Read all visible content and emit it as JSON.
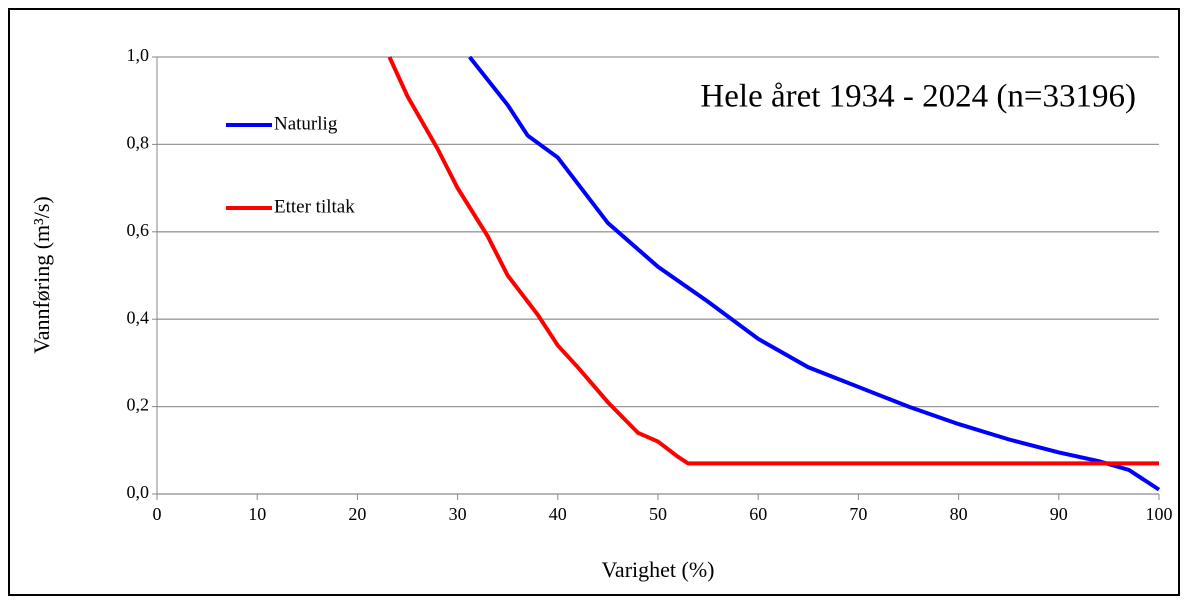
{
  "chart_data": {
    "type": "line",
    "annotation": "Hele året 1934 - 2024 (n=33196)",
    "x_label": "Varighet (%)",
    "y_label": "Vannføring (m³/s)",
    "xlim": [
      0,
      100
    ],
    "xticks": [
      0,
      10,
      20,
      30,
      40,
      50,
      60,
      70,
      80,
      90,
      100
    ],
    "ylim": [
      0,
      1
    ],
    "yticks": [
      {
        "value": 0,
        "label": "0,0"
      },
      {
        "value": 0.2,
        "label": "0,2"
      },
      {
        "value": 0.4,
        "label": "0,4"
      },
      {
        "value": 0.6,
        "label": "0,6"
      },
      {
        "value": 0.8,
        "label": "0,8"
      },
      {
        "value": 1,
        "label": "1,0"
      }
    ],
    "grid": true,
    "legend": "upper left",
    "series": [
      {
        "name": "Naturlig",
        "color": "#0000ff",
        "x": [
          31.2,
          35,
          37,
          40,
          45,
          50,
          55,
          60,
          65,
          70,
          75,
          80,
          85,
          90,
          94,
          97,
          100
        ],
        "values": [
          1.0,
          0.89,
          0.82,
          0.77,
          0.62,
          0.52,
          0.44,
          0.355,
          0.29,
          0.245,
          0.2,
          0.16,
          0.125,
          0.095,
          0.075,
          0.055,
          0.01
        ]
      },
      {
        "name": "Etter tiltak",
        "color": "#ff0000",
        "x": [
          23.2,
          25,
          28,
          30,
          33,
          35,
          38,
          40,
          42,
          45,
          48,
          50,
          52,
          53,
          100
        ],
        "values": [
          1.0,
          0.91,
          0.79,
          0.7,
          0.59,
          0.5,
          0.41,
          0.34,
          0.29,
          0.21,
          0.14,
          0.12,
          0.085,
          0.07,
          0.07
        ]
      }
    ]
  }
}
